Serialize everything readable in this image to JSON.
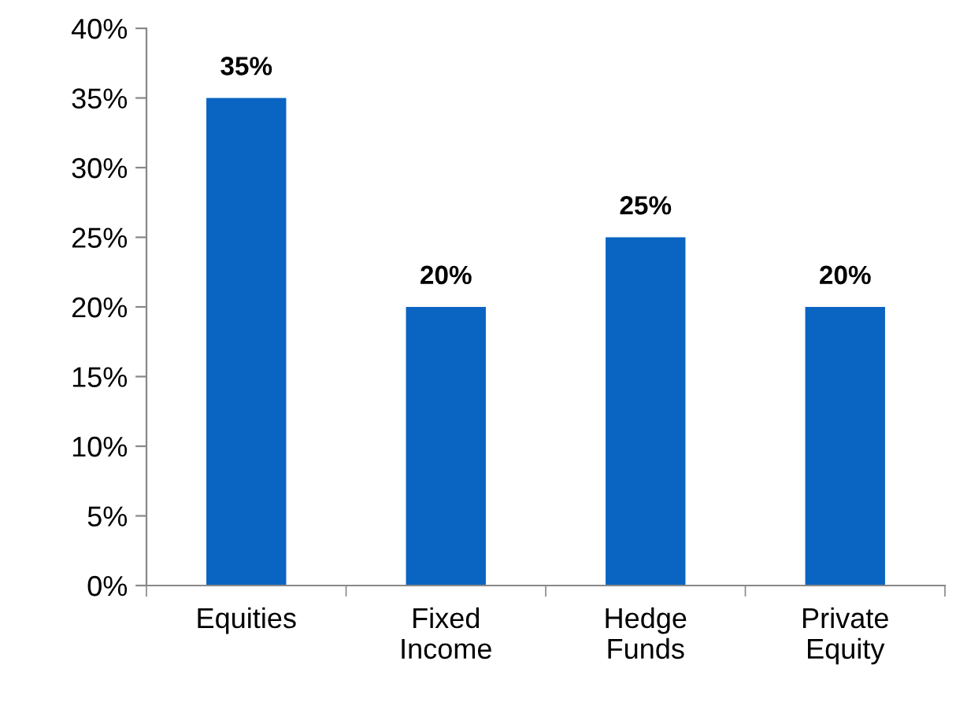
{
  "chart_data": {
    "type": "bar",
    "categories": [
      "Equities",
      "Fixed\nIncome",
      "Hedge\nFunds",
      "Private\nEquity"
    ],
    "values": [
      35,
      20,
      25,
      20
    ],
    "color": "#0a64c2",
    "value_labels": [
      "35%",
      "20%",
      "25%",
      "20%"
    ],
    "ylim": [
      0,
      40
    ],
    "yticks": [
      {
        "value": 0,
        "label": "0%"
      },
      {
        "value": 5,
        "label": "5%"
      },
      {
        "value": 10,
        "label": "10%"
      },
      {
        "value": 15,
        "label": "15%"
      },
      {
        "value": 20,
        "label": "20%"
      },
      {
        "value": 25,
        "label": "25%"
      },
      {
        "value": 30,
        "label": "30%"
      },
      {
        "value": 35,
        "label": "35%"
      },
      {
        "value": 40,
        "label": "40%"
      }
    ],
    "grid": false,
    "legend": false
  }
}
